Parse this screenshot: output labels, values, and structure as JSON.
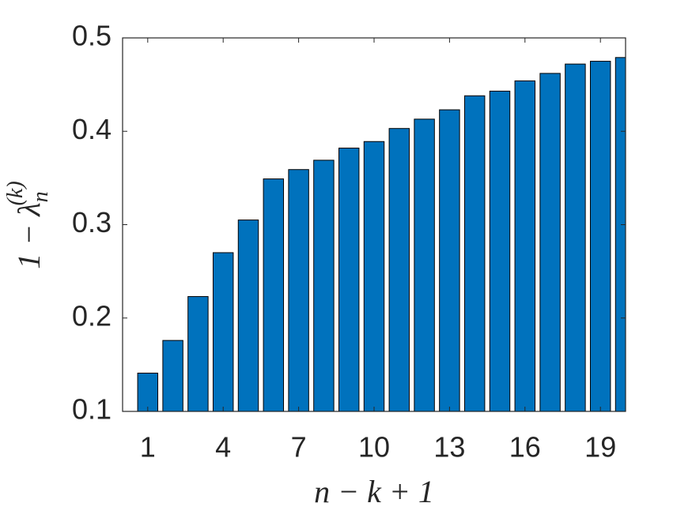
{
  "chart_data": {
    "type": "bar",
    "xlabel": "n − k + 1",
    "ylabel": "1 − λ",
    "ylabel_sub": "n",
    "ylabel_sup": "(k)",
    "x": [
      1,
      2,
      3,
      4,
      5,
      6,
      7,
      8,
      9,
      10,
      11,
      12,
      13,
      14,
      15,
      16,
      17,
      18,
      19,
      20
    ],
    "values": [
      0.141,
      0.176,
      0.223,
      0.27,
      0.305,
      0.349,
      0.359,
      0.369,
      0.382,
      0.389,
      0.403,
      0.413,
      0.423,
      0.438,
      0.443,
      0.454,
      0.462,
      0.472,
      0.475,
      0.479
    ],
    "color": "#0072bd",
    "xlim": [
      0,
      20
    ],
    "xticks": [
      1,
      4,
      7,
      10,
      13,
      16,
      19
    ],
    "ylim": [
      0.1,
      0.5
    ],
    "yticks": [
      0.1,
      0.2,
      0.3,
      0.4,
      0.5
    ],
    "grid": false
  }
}
